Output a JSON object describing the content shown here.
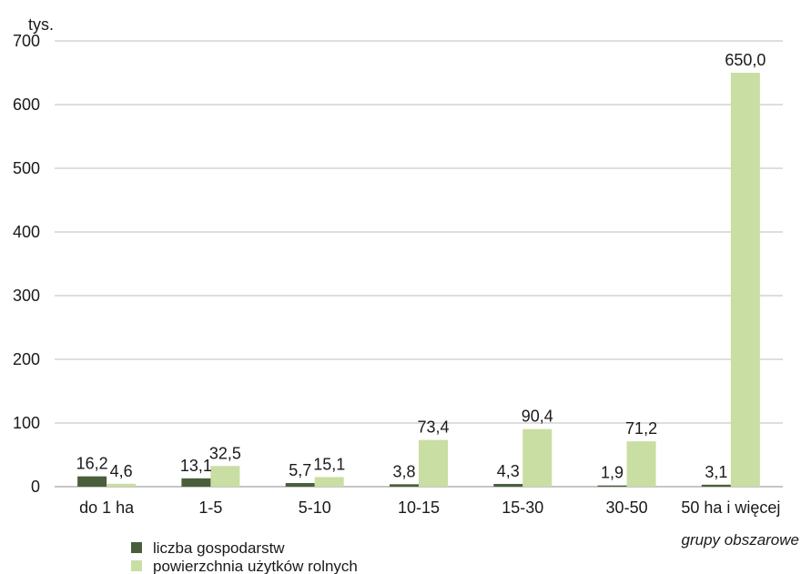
{
  "chart_data": {
    "type": "bar",
    "unit_label": "tys.",
    "xlabel": "grupy obszarowe",
    "ylim": [
      0,
      700
    ],
    "yticks": [
      0,
      100,
      200,
      300,
      400,
      500,
      600,
      700
    ],
    "grid": true,
    "legend_position": "bottom-left",
    "categories": [
      "do 1 ha",
      "1-5",
      "5-10",
      "10-15",
      "15-30",
      "30-50",
      "50 ha i więcej"
    ],
    "series": [
      {
        "name": "liczba gospodarstw",
        "color": "#4a5e3c",
        "values": [
          16.2,
          13.1,
          5.7,
          3.8,
          4.3,
          1.9,
          3.1
        ],
        "labels": [
          "16,2",
          "13,1",
          "5,7",
          "3,8",
          "4,3",
          "1,9",
          "3,1"
        ]
      },
      {
        "name": "powierzchnia użytków rolnych",
        "color": "#c9dea2",
        "values": [
          4.6,
          32.5,
          15.1,
          73.4,
          90.4,
          71.2,
          650.0
        ],
        "labels": [
          "4,6",
          "32,5",
          "15,1",
          "73,4",
          "90,4",
          "71,2",
          "650,0"
        ]
      }
    ]
  }
}
